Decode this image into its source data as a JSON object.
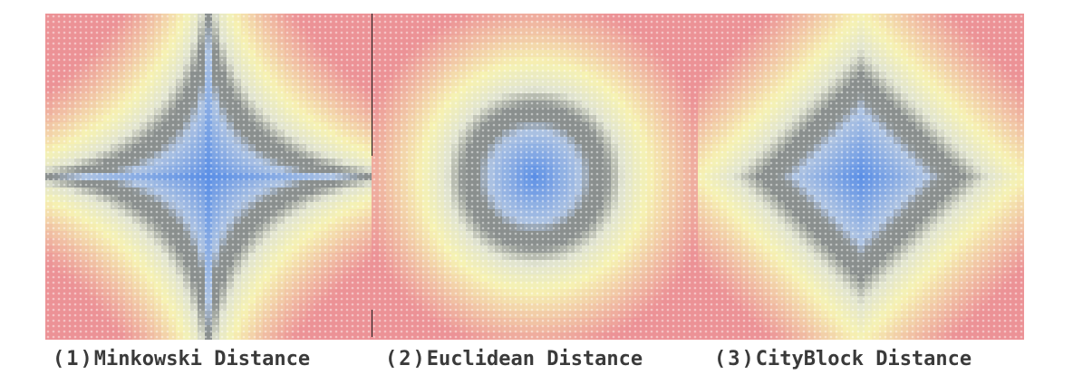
{
  "panels": [
    {
      "metric": "minkowski",
      "number": "(1)",
      "label": "Minkowski Distance"
    },
    {
      "metric": "euclidean",
      "number": "(2)",
      "label": "Euclidean Distance"
    },
    {
      "metric": "cityblock",
      "number": "(3)",
      "label": "CityBlock Distance"
    }
  ],
  "colors": {
    "near": "#5b8fe6",
    "ring": "#8a8f8e",
    "mid": "#f6f2b2",
    "far": "#ec9296"
  },
  "icons": {
    "grid-dot": "white-dot-lattice"
  }
}
